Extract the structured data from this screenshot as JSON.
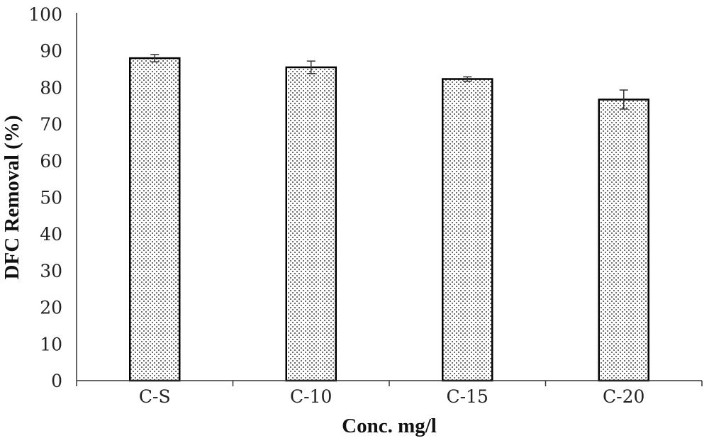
{
  "chart_data": {
    "type": "bar",
    "title": "",
    "xlabel": "Conc. mg/l",
    "ylabel": "DFC Removal (%)",
    "categories": [
      "C-S",
      "C-10",
      "C-15",
      "C-20"
    ],
    "values": [
      88,
      85.5,
      82.3,
      76.7
    ],
    "error": [
      1.0,
      1.7,
      0.6,
      2.6
    ],
    "ylim": [
      0,
      100
    ],
    "yticks": [
      0,
      10,
      20,
      30,
      40,
      50,
      60,
      70,
      80,
      90,
      100
    ],
    "grid": false,
    "legend": "none",
    "bar_pattern": "dotted",
    "colors": {
      "bar_fill": "#ffffff",
      "bar_dots": "#6e6e6e",
      "bar_edge": "#000000",
      "axis": "#333333",
      "error_bar": "#333333"
    }
  }
}
